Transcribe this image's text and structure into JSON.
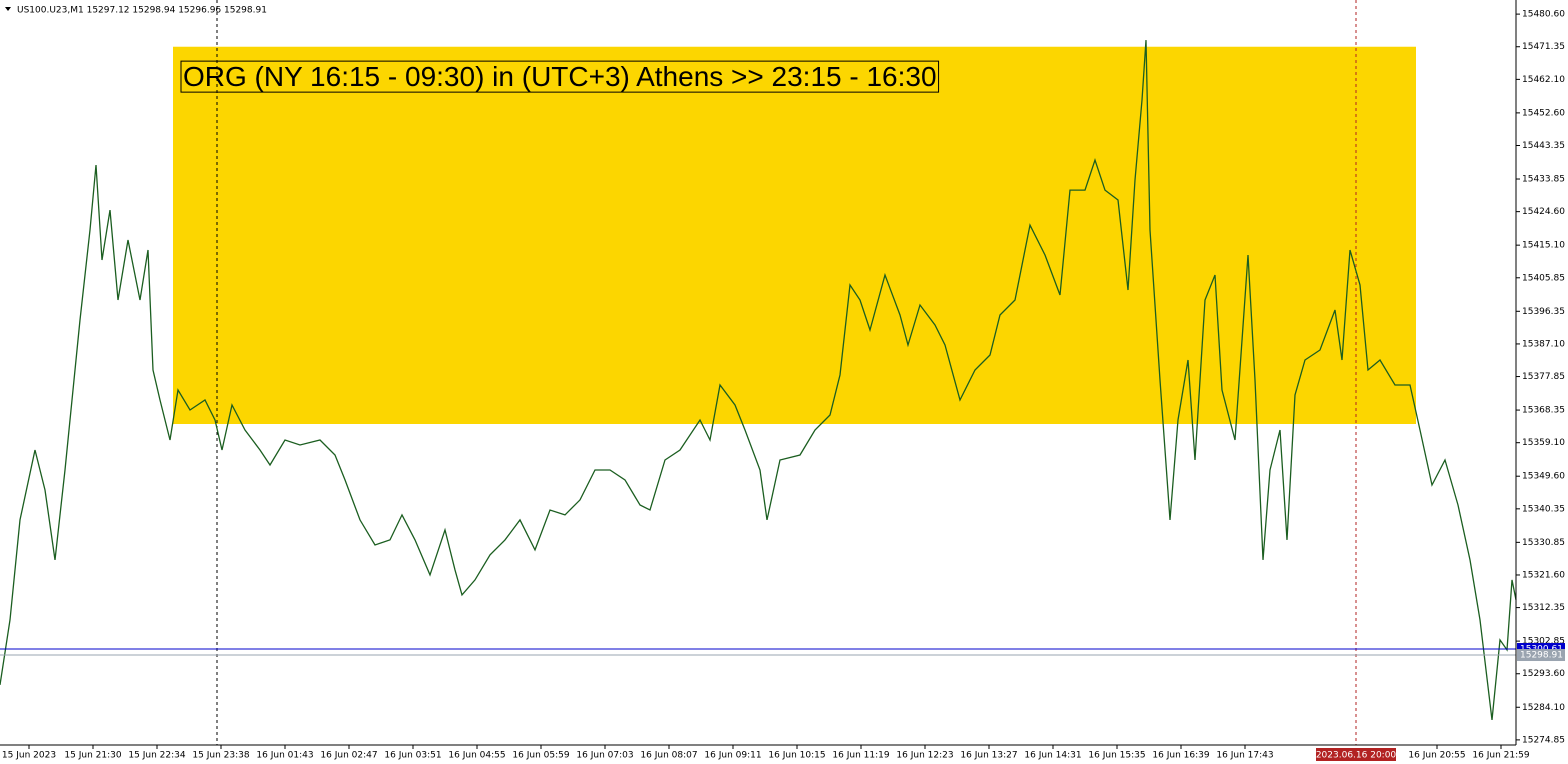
{
  "chart_data": {
    "type": "line",
    "title": "US100.U23,M1  15297.12 15298.94 15296.96 15298.91",
    "color": "#1b5e20",
    "xlim": [
      0,
      1516
    ],
    "ylim": [
      15273.4,
      15484.6
    ],
    "xticks": [
      {
        "value": 29,
        "label": "15 Jun 2023"
      },
      {
        "value": 93,
        "label": "15 Jun 21:30"
      },
      {
        "value": 157,
        "label": "15 Jun 22:34"
      },
      {
        "value": 221,
        "label": "15 Jun 23:38"
      },
      {
        "value": 285,
        "label": "16 Jun 01:43"
      },
      {
        "value": 349,
        "label": "16 Jun 02:47"
      },
      {
        "value": 413,
        "label": "16 Jun 03:51"
      },
      {
        "value": 477,
        "label": "16 Jun 04:55"
      },
      {
        "value": 541,
        "label": "16 Jun 05:59"
      },
      {
        "value": 605,
        "label": "16 Jun 07:03"
      },
      {
        "value": 669,
        "label": "16 Jun 08:07"
      },
      {
        "value": 733,
        "label": "16 Jun 09:11"
      },
      {
        "value": 797,
        "label": "16 Jun 10:15"
      },
      {
        "value": 861,
        "label": "16 Jun 11:19"
      },
      {
        "value": 925,
        "label": "16 Jun 12:23"
      },
      {
        "value": 989,
        "label": "16 Jun 13:27"
      },
      {
        "value": 1053,
        "label": "16 Jun 14:31"
      },
      {
        "value": 1117,
        "label": "16 Jun 15:35"
      },
      {
        "value": 1181,
        "label": "16 Jun 16:39"
      },
      {
        "value": 1245,
        "label": "16 Jun 17:43"
      },
      {
        "value": 1437,
        "label": "16 Jun 20:55"
      },
      {
        "value": 1501,
        "label": "16 Jun 21:59"
      }
    ],
    "yticks": [
      {
        "value": 15480.6,
        "label": "15480.60"
      },
      {
        "value": 15471.35,
        "label": "15471.35"
      },
      {
        "value": 15462.1,
        "label": "15462.10"
      },
      {
        "value": 15452.6,
        "label": "15452.60"
      },
      {
        "value": 15443.35,
        "label": "15443.35"
      },
      {
        "value": 15433.85,
        "label": "15433.85"
      },
      {
        "value": 15424.6,
        "label": "15424.60"
      },
      {
        "value": 15415.1,
        "label": "15415.10"
      },
      {
        "value": 15405.85,
        "label": "15405.85"
      },
      {
        "value": 15396.35,
        "label": "15396.35"
      },
      {
        "value": 15387.1,
        "label": "15387.10"
      },
      {
        "value": 15377.85,
        "label": "15377.85"
      },
      {
        "value": 15368.35,
        "label": "15368.35"
      },
      {
        "value": 15359.1,
        "label": "15359.10"
      },
      {
        "value": 15349.6,
        "label": "15349.60"
      },
      {
        "value": 15340.35,
        "label": "15340.35"
      },
      {
        "value": 15330.85,
        "label": "15330.85"
      },
      {
        "value": 15321.6,
        "label": "15321.60"
      },
      {
        "value": 15312.35,
        "label": "15312.35"
      },
      {
        "value": 15302.85,
        "label": "15302.85"
      },
      {
        "value": 15293.6,
        "label": "15293.60"
      },
      {
        "value": 15284.1,
        "label": "15284.10"
      },
      {
        "value": 15274.85,
        "label": "15274.85"
      }
    ],
    "zone": {
      "label": "ORG (NY 16:15 - 09:30)  in (UTC+3) Athens >> 23:15 - 16:30",
      "color": "#fcd600",
      "x": [
        173,
        1416
      ],
      "y": [
        15364.4,
        15471.35
      ]
    },
    "price_lines": [
      {
        "value": 15300.61,
        "label": "15300.61",
        "color": "#0000cc"
      },
      {
        "value": 15298.91,
        "label": "15298.91",
        "color": "#9aa4b0"
      }
    ],
    "vlines": [
      {
        "x": 217,
        "color": "#000000"
      },
      {
        "x": 1356,
        "color": "#b22222",
        "label": "2023.06.16 20:00"
      }
    ],
    "x": [
      0,
      10,
      20,
      35,
      45,
      55,
      65,
      80,
      90,
      96,
      102,
      110,
      118,
      128,
      140,
      148,
      153,
      160,
      170,
      178,
      190,
      205,
      215,
      222,
      232,
      245,
      260,
      270,
      285,
      300,
      320,
      335,
      345,
      360,
      375,
      390,
      402,
      415,
      430,
      445,
      455,
      462,
      475,
      490,
      505,
      520,
      535,
      550,
      565,
      580,
      595,
      610,
      625,
      640,
      650,
      665,
      680,
      700,
      710,
      720,
      735,
      745,
      760,
      767,
      780,
      800,
      815,
      830,
      840,
      850,
      860,
      870,
      885,
      900,
      908,
      920,
      935,
      945,
      960,
      975,
      990,
      1000,
      1015,
      1030,
      1045,
      1060,
      1070,
      1085,
      1095,
      1105,
      1118,
      1128,
      1135,
      1142,
      1146,
      1150,
      1160,
      1170,
      1178,
      1188,
      1195,
      1205,
      1215,
      1222,
      1235,
      1248,
      1255,
      1263,
      1270,
      1280,
      1287,
      1295,
      1305,
      1320,
      1335,
      1342,
      1350,
      1360,
      1368,
      1380,
      1395,
      1410,
      1420,
      1432,
      1445,
      1458,
      1470,
      1480,
      1492,
      1500,
      1507,
      1512,
      1516
    ],
    "values": [
      15290.44,
      15308.86,
      15337.2,
      15357.04,
      15345.7,
      15325.86,
      15351.37,
      15393.88,
      15419.39,
      15437.81,
      15410.88,
      15425.05,
      15399.55,
      15416.55,
      15399.55,
      15413.72,
      15379.71,
      15371.21,
      15359.87,
      15374.04,
      15368.37,
      15371.21,
      15365.54,
      15357.04,
      15369.79,
      15362.71,
      15357.04,
      15352.79,
      15359.87,
      15358.45,
      15359.87,
      15355.62,
      15348.54,
      15337.2,
      15330.11,
      15331.53,
      15338.62,
      15331.53,
      15321.61,
      15334.37,
      15323.03,
      15315.94,
      15320.2,
      15327.28,
      15331.53,
      15337.2,
      15328.7,
      15340.03,
      15338.62,
      15342.87,
      15351.37,
      15351.37,
      15348.54,
      15341.45,
      15340.03,
      15354.2,
      15357.04,
      15365.54,
      15359.87,
      15375.46,
      15369.79,
      15362.71,
      15351.37,
      15337.2,
      15354.2,
      15355.62,
      15362.71,
      15366.96,
      15378.29,
      15403.8,
      15399.55,
      15391.05,
      15406.63,
      15395.3,
      15386.79,
      15398.13,
      15392.46,
      15386.79,
      15371.21,
      15379.71,
      15383.96,
      15395.3,
      15399.55,
      15420.8,
      15412.3,
      15400.96,
      15430.72,
      15430.72,
      15439.22,
      15430.72,
      15427.89,
      15402.38,
      15433.56,
      15456.23,
      15473.23,
      15419.39,
      15376.88,
      15337.2,
      15365.54,
      15382.54,
      15354.2,
      15399.55,
      15406.63,
      15374.04,
      15359.87,
      15412.3,
      15376.88,
      15325.86,
      15351.37,
      15362.71,
      15331.53,
      15372.62,
      15382.54,
      15385.38,
      15396.71,
      15382.54,
      15413.72,
      15403.8,
      15379.71,
      15382.54,
      15375.46,
      15375.46,
      15362.71,
      15347.12,
      15354.2,
      15341.45,
      15325.86,
      15308.86,
      15280.52,
      15303.19,
      15300.36,
      15320.2,
      15314.53
    ]
  }
}
